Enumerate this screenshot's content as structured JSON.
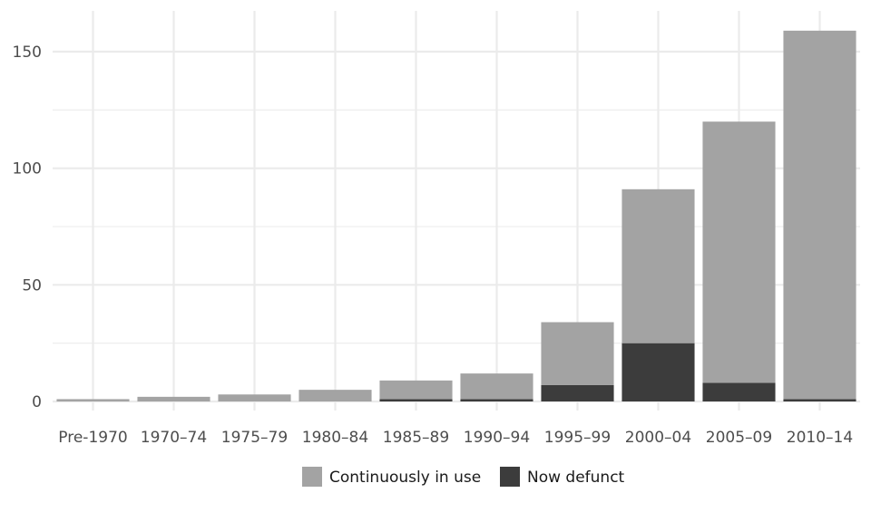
{
  "chart_data": {
    "type": "bar",
    "stacked": true,
    "categories": [
      "Pre-1970",
      "1970–74",
      "1975–79",
      "1980–84",
      "1985–89",
      "1990–94",
      "1995–99",
      "2000–04",
      "2005–09",
      "2010–14"
    ],
    "series": [
      {
        "name": "Now defunct",
        "values": [
          0,
          0,
          0,
          0,
          1,
          1,
          7,
          25,
          8,
          1
        ]
      },
      {
        "name": "Continuously in use",
        "values": [
          1,
          2,
          3,
          5,
          8,
          11,
          27,
          66,
          112,
          158
        ]
      }
    ],
    "colors": {
      "Continuously in use": "#a3a3a3",
      "Now defunct": "#3c3c3c",
      "grid": "#ebebeb"
    },
    "y_ticks": [
      "0",
      "50",
      "100",
      "150"
    ],
    "ylim": [
      0,
      160
    ],
    "grid": true,
    "legend_position": "bottom",
    "title": "",
    "xlabel": "",
    "ylabel": ""
  }
}
